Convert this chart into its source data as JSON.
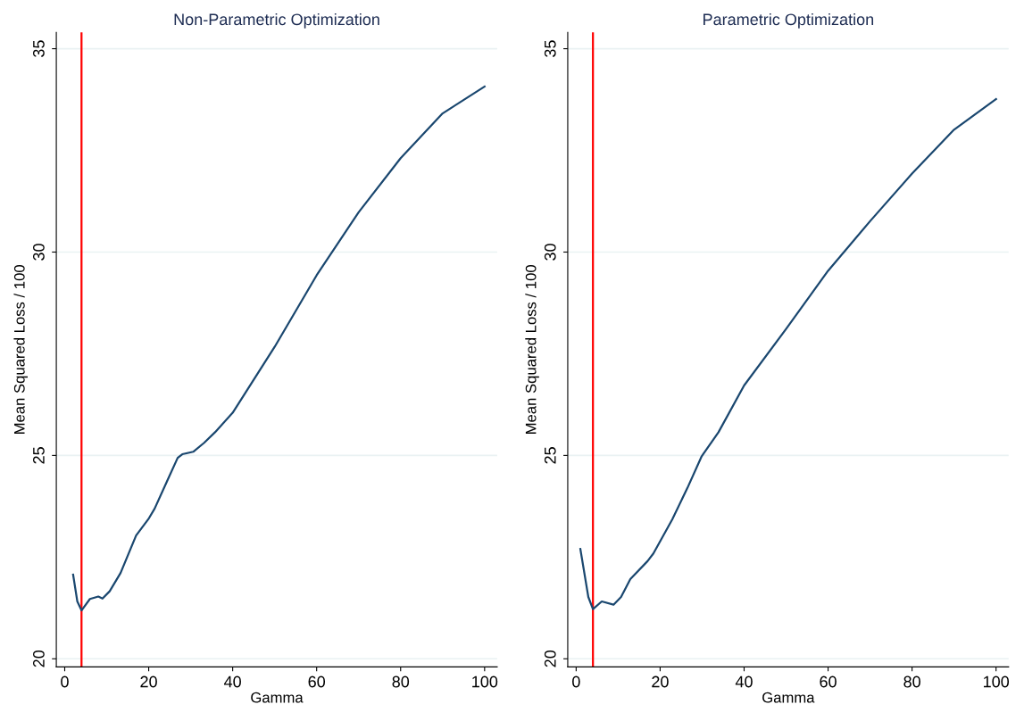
{
  "chart_data": [
    {
      "type": "line",
      "title": "Non-Parametric Optimization",
      "xlabel": "Gamma",
      "ylabel": "Mean Squared Loss / 100",
      "xlim": [
        -2,
        103
      ],
      "ylim": [
        19.8,
        35.4
      ],
      "xticks": [
        0,
        20,
        40,
        60,
        80,
        100
      ],
      "yticks": [
        20,
        25,
        30,
        35
      ],
      "grid": "y",
      "ref_lines": [
        {
          "axis": "x",
          "value": 4,
          "color": "#ff0000"
        }
      ],
      "series": [
        {
          "color": "#1a476f",
          "x": [
            2,
            3,
            4,
            6,
            8,
            9,
            10.7,
            13.3,
            17,
            19.9,
            21.4,
            24.3,
            26.9,
            28,
            30.6,
            33.2,
            35.8,
            40,
            50,
            60,
            70,
            80,
            90,
            100
          ],
          "values": [
            22.07,
            21.41,
            21.19,
            21.47,
            21.53,
            21.48,
            21.66,
            22.11,
            23.03,
            23.43,
            23.69,
            24.35,
            24.94,
            25.03,
            25.09,
            25.31,
            25.57,
            26.05,
            27.67,
            29.43,
            30.98,
            32.31,
            33.41,
            34.07
          ]
        }
      ]
    },
    {
      "type": "line",
      "title": "Parametric Optimization",
      "xlabel": "Gamma",
      "ylabel": "Mean Squared Loss / 100",
      "xlim": [
        -2,
        103
      ],
      "ylim": [
        19.8,
        35.4
      ],
      "xticks": [
        0,
        20,
        40,
        60,
        80,
        100
      ],
      "yticks": [
        20,
        25,
        30,
        35
      ],
      "grid": "y",
      "ref_lines": [
        {
          "axis": "x",
          "value": 4,
          "color": "#ff0000"
        }
      ],
      "series": [
        {
          "color": "#1a476f",
          "x": [
            1,
            2.9,
            4,
            6.1,
            8.9,
            10.7,
            12.9,
            17,
            18.4,
            22.9,
            26.5,
            29.9,
            33.9,
            40,
            50,
            60,
            70,
            80,
            90,
            100
          ],
          "values": [
            22.7,
            21.52,
            21.22,
            21.41,
            21.33,
            21.52,
            21.96,
            22.4,
            22.59,
            23.43,
            24.2,
            24.98,
            25.57,
            26.72,
            28.11,
            29.54,
            30.76,
            31.93,
            33.01,
            33.76
          ]
        }
      ]
    }
  ]
}
